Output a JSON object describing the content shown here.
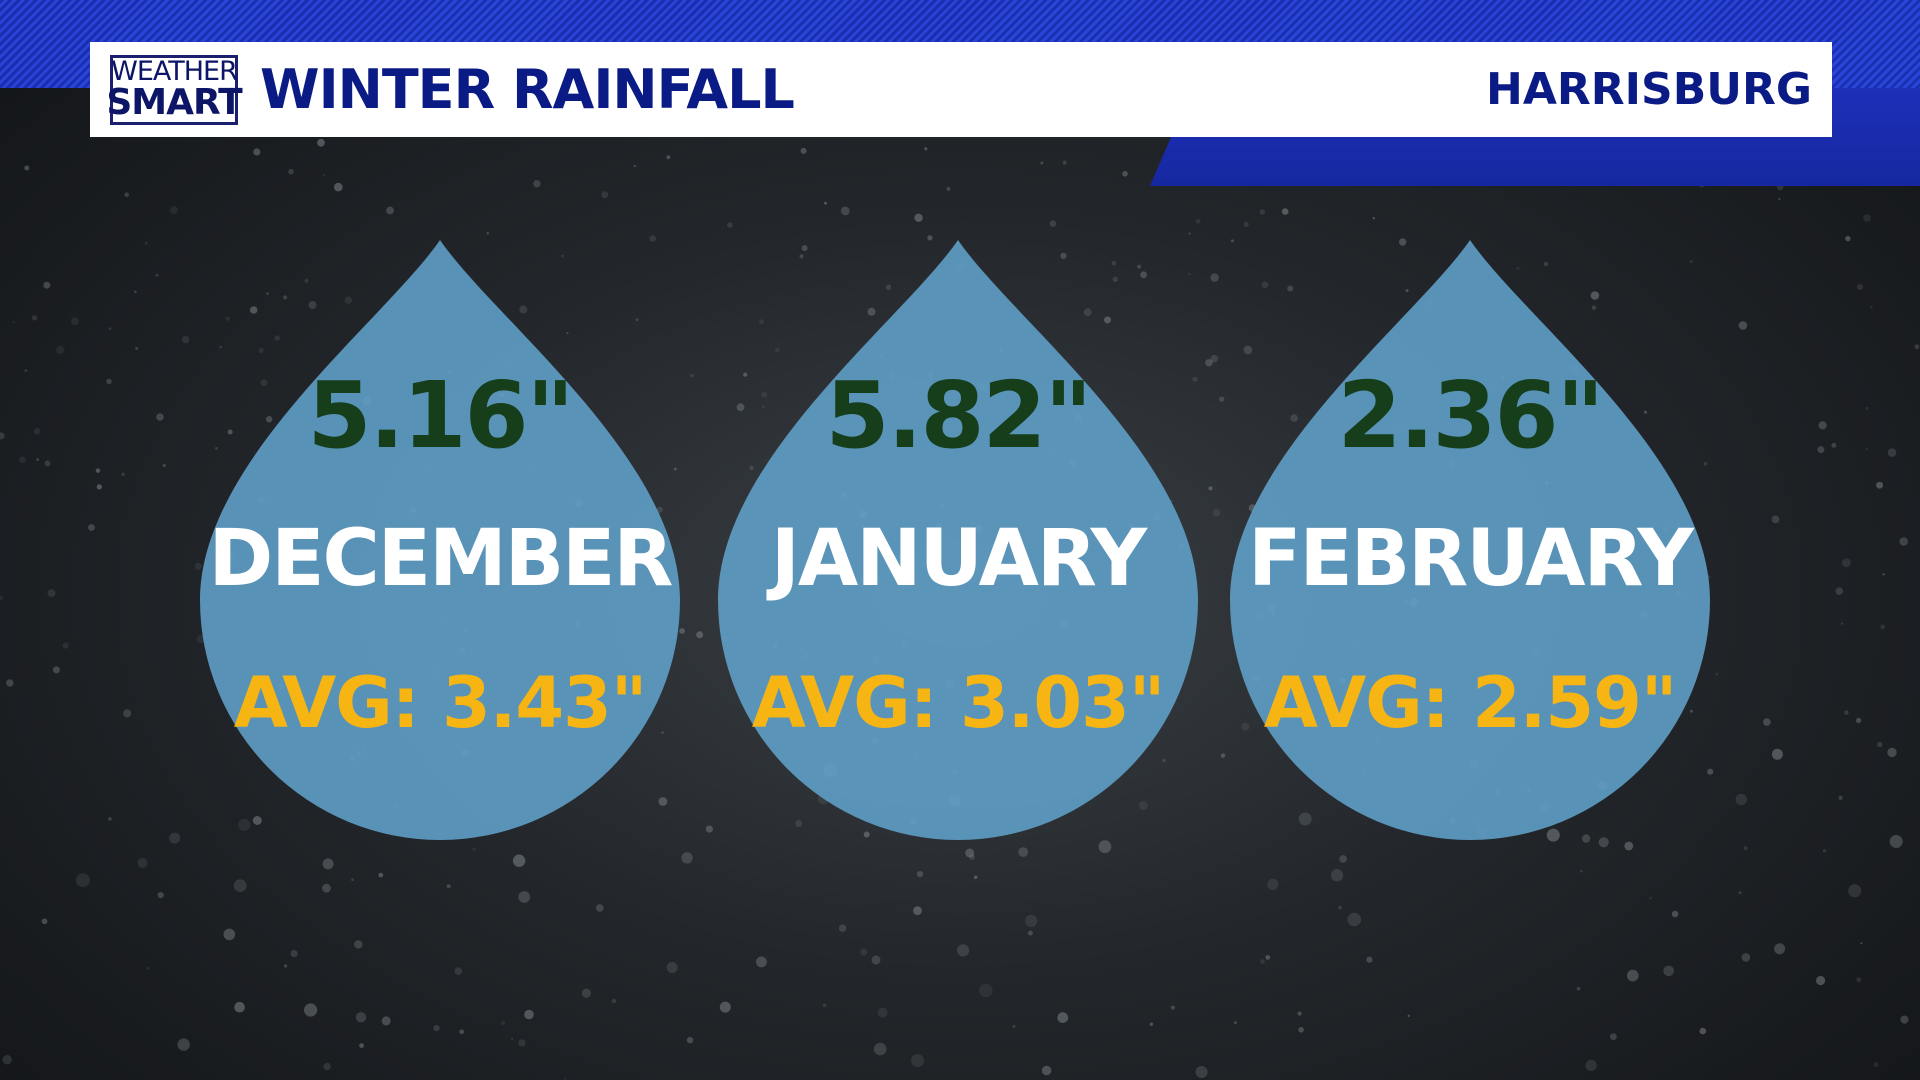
{
  "header": {
    "logo_line1": "WEATHER",
    "logo_line2": "SMART",
    "title": "WINTER RAINFALL",
    "location": "HARRISBURG"
  },
  "colors": {
    "brand_blue": "#0b1b86",
    "drop_blue": "#5f9fc6",
    "value_green": "#163e1a",
    "avg_gold": "#f7b513"
  },
  "months": [
    {
      "value": "5.16\"",
      "month": "DECEMBER",
      "avg": "AVG: 3.43\""
    },
    {
      "value": "5.82\"",
      "month": "JANUARY",
      "avg": "AVG: 3.03\""
    },
    {
      "value": "2.36\"",
      "month": "FEBRUARY",
      "avg": "AVG: 2.59\""
    }
  ]
}
